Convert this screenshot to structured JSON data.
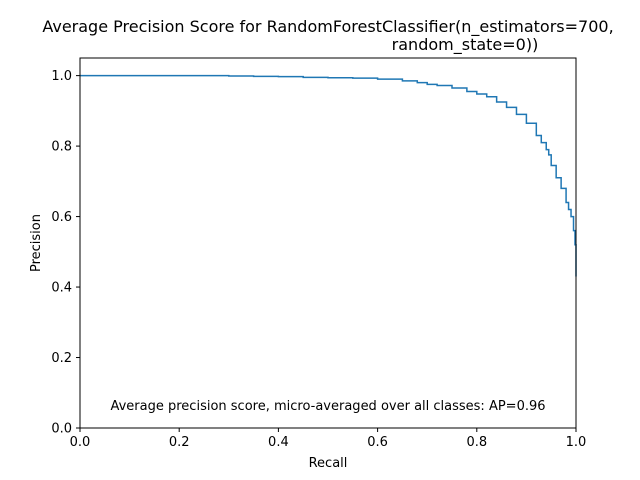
{
  "chart_data": {
    "type": "line",
    "title_lines": [
      "Average Precision Score for RandomForestClassifier(n_estimators=700,",
      "random_state=0))"
    ],
    "xlabel": "Recall",
    "ylabel": "Precision",
    "xlim": [
      0.0,
      1.0
    ],
    "ylim": [
      0.0,
      1.05
    ],
    "x_ticks": [
      0.0,
      0.2,
      0.4,
      0.6,
      0.8,
      1.0
    ],
    "x_tick_labels": [
      "0.0",
      "0.2",
      "0.4",
      "0.6",
      "0.8",
      "1.0"
    ],
    "y_ticks": [
      0.0,
      0.2,
      0.4,
      0.6,
      0.8,
      1.0
    ],
    "y_tick_labels": [
      "0.0",
      "0.2",
      "0.4",
      "0.6",
      "0.8",
      "1.0"
    ],
    "grid": false,
    "annotation": "Average precision score, micro-averaged over all classes: AP=0.96",
    "series": [
      {
        "color": "#1f77b4",
        "x": [
          0.0,
          0.1,
          0.2,
          0.3,
          0.35,
          0.4,
          0.45,
          0.5,
          0.55,
          0.6,
          0.65,
          0.68,
          0.7,
          0.72,
          0.75,
          0.78,
          0.8,
          0.82,
          0.84,
          0.86,
          0.88,
          0.9,
          0.92,
          0.93,
          0.94,
          0.945,
          0.95,
          0.96,
          0.97,
          0.98,
          0.985,
          0.99,
          0.995,
          0.998,
          1.0,
          1.0
        ],
        "y": [
          1.0,
          1.0,
          1.0,
          0.999,
          0.998,
          0.997,
          0.995,
          0.994,
          0.993,
          0.99,
          0.985,
          0.98,
          0.975,
          0.972,
          0.965,
          0.955,
          0.948,
          0.94,
          0.925,
          0.91,
          0.89,
          0.865,
          0.83,
          0.81,
          0.79,
          0.775,
          0.745,
          0.71,
          0.68,
          0.64,
          0.62,
          0.6,
          0.56,
          0.52,
          0.48,
          0.43
        ]
      }
    ]
  }
}
